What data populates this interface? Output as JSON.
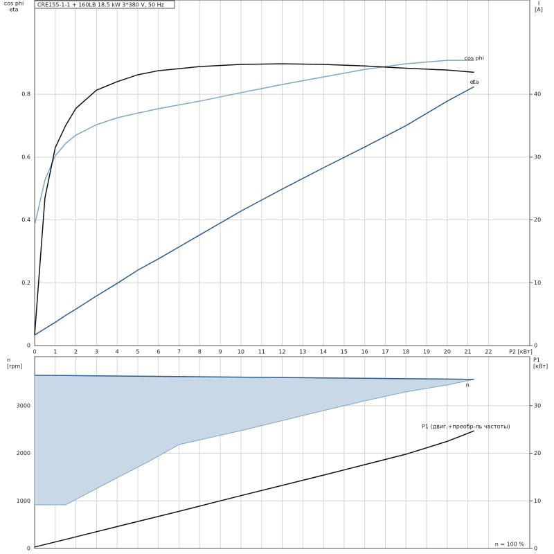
{
  "chart_data": [
    {
      "type": "line",
      "title": "CRE155-1-1 + 160LB   18.5 kW   3*380 V, 50 Hz",
      "y_label": [
        "cos phi",
        "eta"
      ],
      "y2_label": [
        "I",
        "[A]"
      ],
      "x_label": "P2 [кВт]",
      "x": [
        0,
        0.5,
        1,
        1.5,
        2,
        3,
        4,
        5,
        6,
        8,
        10,
        12,
        14,
        16,
        18,
        20,
        21.3
      ],
      "xlim": [
        0,
        24
      ],
      "xticks": [
        0,
        1,
        2,
        3,
        4,
        5,
        6,
        7,
        8,
        9,
        10,
        11,
        12,
        13,
        14,
        15,
        16,
        17,
        18,
        19,
        20,
        21,
        22
      ],
      "ylim": [
        0,
        1.1
      ],
      "yticks": [
        0,
        0.2,
        0.4,
        0.6,
        0.8
      ],
      "y2lim": [
        0,
        55
      ],
      "y2ticks": [
        0,
        10,
        20,
        30,
        40
      ],
      "grid": true,
      "series": [
        {
          "name": "cos phi",
          "color": "#7aa6cc",
          "values": [
            0.383,
            0.527,
            0.604,
            0.643,
            0.67,
            0.703,
            0.725,
            0.74,
            0.754,
            0.778,
            0.805,
            0.831,
            0.855,
            0.879,
            0.897,
            0.908,
            0.908
          ]
        },
        {
          "name": "eta",
          "color": "#111111",
          "values": [
            0.033,
            0.47,
            0.63,
            0.7,
            0.755,
            0.813,
            0.84,
            0.862,
            0.875,
            0.888,
            0.895,
            0.897,
            0.895,
            0.89,
            0.883,
            0.877,
            0.87
          ]
        },
        {
          "name": "I",
          "color": "#2d5d8e",
          "axis": "y2",
          "values": [
            1.65,
            2.7,
            3.7,
            4.8,
            5.8,
            7.9,
            9.9,
            12.0,
            13.8,
            17.6,
            21.4,
            24.9,
            28.3,
            31.6,
            35.0,
            38.9,
            41.2
          ]
        }
      ]
    },
    {
      "type": "line",
      "y_label": [
        "n",
        "[rpm]"
      ],
      "y2_label": [
        "P1",
        "[кВт]"
      ],
      "annotation": "n = 100 %",
      "x": [
        0,
        1.5,
        4,
        5.5,
        7,
        10,
        14,
        16,
        18,
        20,
        21.3
      ],
      "xlim": [
        0,
        24
      ],
      "ylim": [
        0,
        4030
      ],
      "yticks": [
        0,
        1000,
        2000,
        3000
      ],
      "y2lim": [
        0,
        40.3
      ],
      "y2ticks": [
        0,
        10,
        20,
        30
      ],
      "grid": true,
      "series": [
        {
          "name": "n",
          "color": "#2d5d8e",
          "fill": "#c9d8e6",
          "values": [
            3639,
            3633,
            3623,
            3617,
            3611,
            3599,
            3583,
            3575,
            3567,
            3559,
            3552
          ],
          "lower": [
            917,
            917,
            1485,
            1820,
            2183,
            2475,
            2897,
            3100,
            3290,
            3435,
            3552
          ]
        },
        {
          "name": "P1 (двиг.+преобр-ль частоты)",
          "color": "#111111",
          "axis": "y2",
          "values": [
            0.3,
            1.9,
            4.6,
            6.2,
            7.8,
            11.1,
            15.4,
            17.6,
            19.8,
            22.5,
            24.7
          ]
        }
      ]
    }
  ]
}
